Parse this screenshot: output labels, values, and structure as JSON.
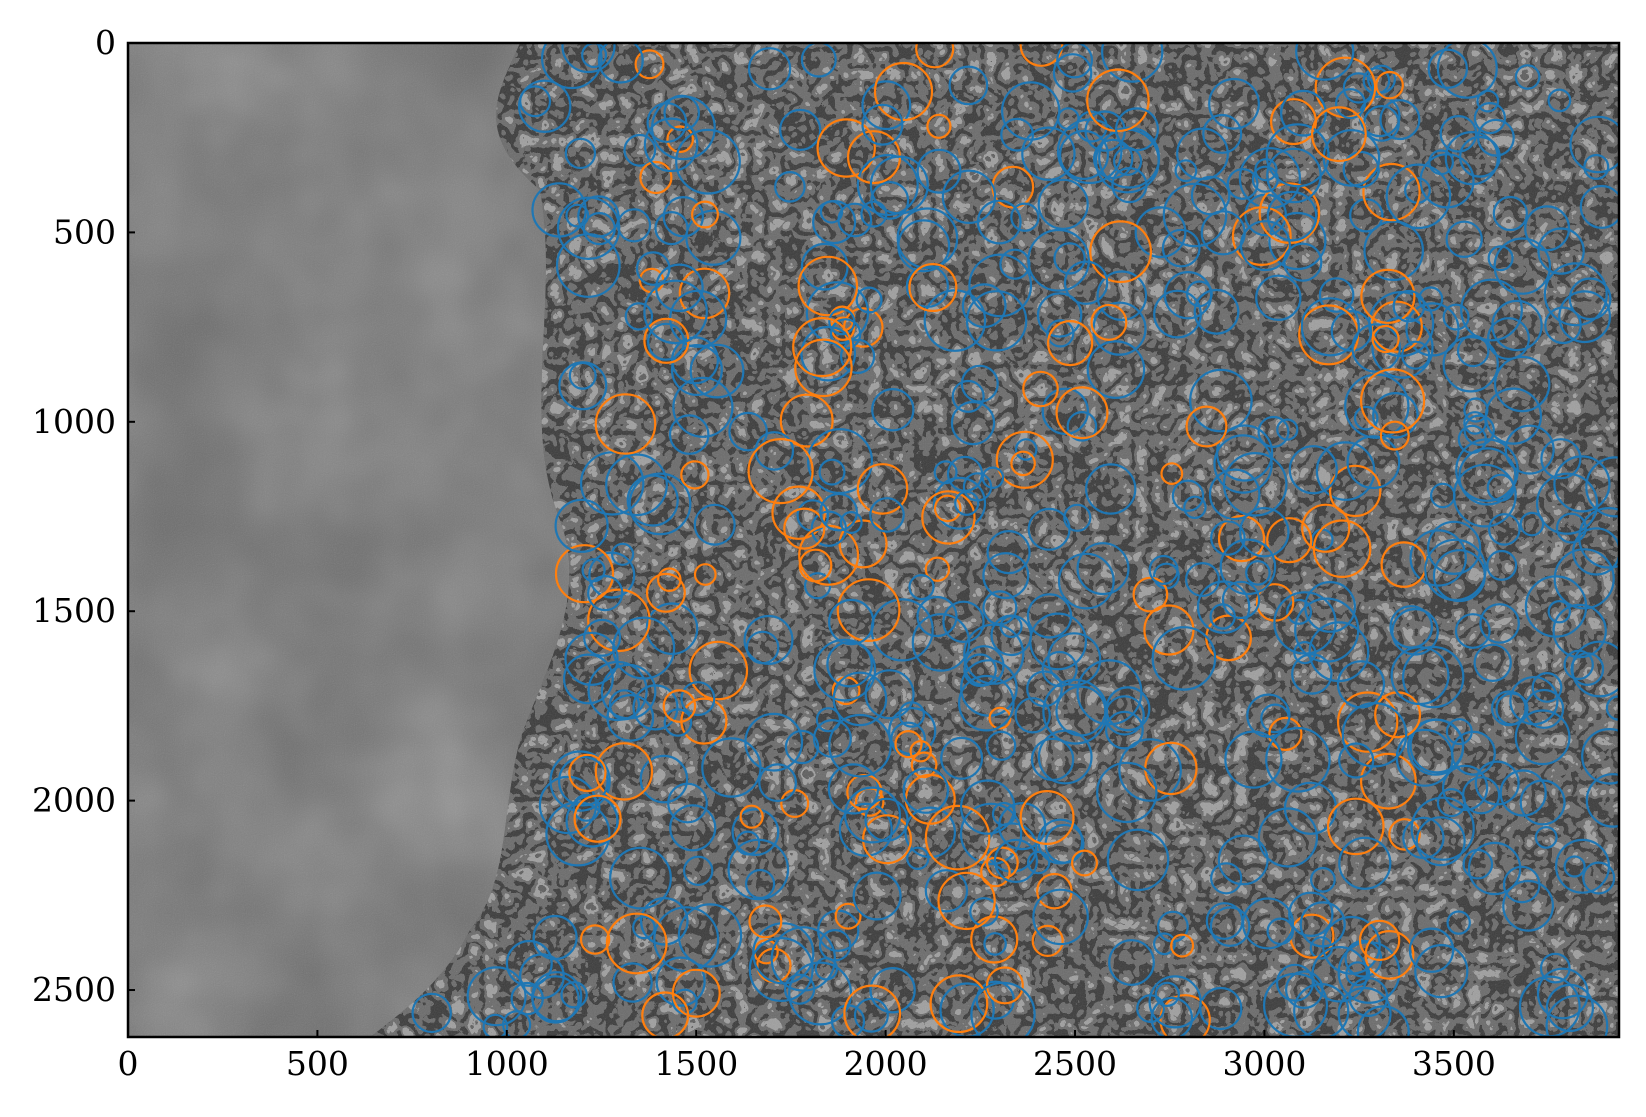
{
  "figure": {
    "description_visible_only": true,
    "x_axis": {
      "ticks": [
        "0",
        "500",
        "1000",
        "1500",
        "2000",
        "2500",
        "3000",
        "3500"
      ],
      "range": [
        0,
        3936
      ]
    },
    "y_axis": {
      "ticks": [
        "0",
        "500",
        "1000",
        "1500",
        "2000",
        "2500"
      ],
      "range": [
        0,
        2624
      ],
      "inverted": true
    }
  },
  "colors": {
    "series_a": "#1f77b4",
    "series_b": "#ff7f0e",
    "frame": "#000000"
  }
}
